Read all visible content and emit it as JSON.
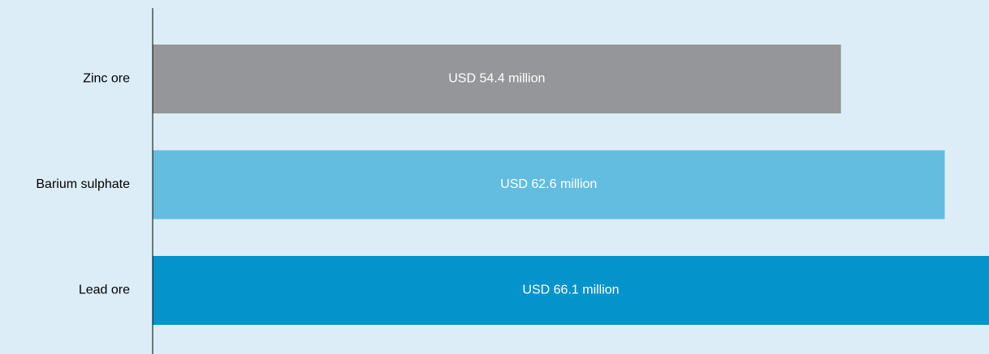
{
  "chart_data": {
    "type": "bar",
    "orientation": "horizontal",
    "categories": [
      "Zinc ore",
      "Barium sulphate",
      "Lead ore"
    ],
    "values": [
      54.4,
      62.6,
      66.1
    ],
    "value_labels": [
      "USD 54.4 million",
      "USD 62.6 million",
      "USD 66.1 million"
    ],
    "colors": [
      "#959699",
      "#63bde1",
      "#0493cb"
    ]
  }
}
